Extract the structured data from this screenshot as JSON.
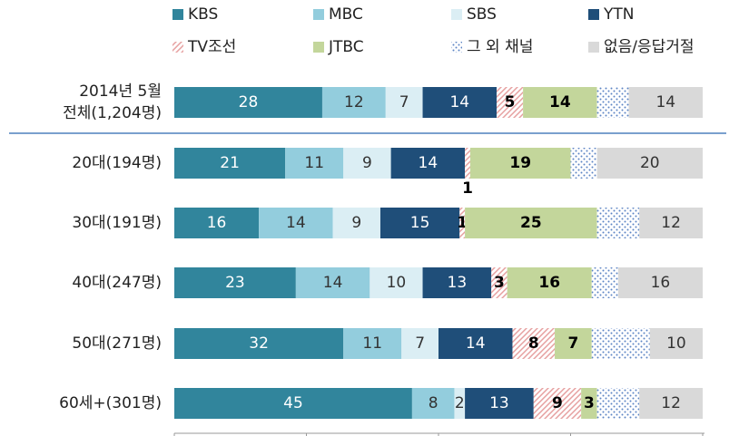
{
  "chart_data": {
    "type": "stacked-bar-horizontal",
    "categories": [
      "2014년 5월\n전체(1,204명)",
      "20대(194명)",
      "30대(191명)",
      "40대(247명)",
      "50대(271명)",
      "60세+(301명)"
    ],
    "series": [
      {
        "name": "KBS",
        "color": "#31859c",
        "label_color": "#ffffff",
        "values": [
          28,
          21,
          16,
          23,
          32,
          45
        ]
      },
      {
        "name": "MBC",
        "color": "#93cddd",
        "label_color": "#333333",
        "values": [
          12,
          11,
          14,
          14,
          11,
          8
        ]
      },
      {
        "name": "SBS",
        "color": "#dbeef4",
        "label_color": "#333333",
        "values": [
          7,
          9,
          9,
          10,
          7,
          2
        ]
      },
      {
        "name": "YTN",
        "color": "#1f4e79",
        "label_color": "#ffffff",
        "values": [
          14,
          14,
          15,
          13,
          14,
          13
        ]
      },
      {
        "name": "TV조선",
        "color": "#e6a0a0",
        "pattern": "diagonal",
        "label_color": "#000000",
        "label_bold": true,
        "values": [
          5,
          1,
          1,
          3,
          8,
          9
        ]
      },
      {
        "name": "JTBC",
        "color": "#c3d69b",
        "label_color": "#000000",
        "label_bold": true,
        "values": [
          14,
          19,
          25,
          16,
          7,
          3
        ]
      },
      {
        "name": "그 외 채널",
        "color": "#5b84c4",
        "pattern": "dots",
        "values": [
          6,
          5,
          8,
          5,
          11,
          8
        ],
        "value_labels": [
          null,
          null,
          null,
          null,
          null,
          null
        ]
      },
      {
        "name": "없음/응답거절",
        "color": "#d9d9d9",
        "label_color": "#333333",
        "values": [
          14,
          20,
          12,
          16,
          10,
          12
        ]
      }
    ],
    "xlim": [
      0,
      100
    ],
    "xticks": [
      0,
      25,
      50,
      75,
      100
    ]
  }
}
